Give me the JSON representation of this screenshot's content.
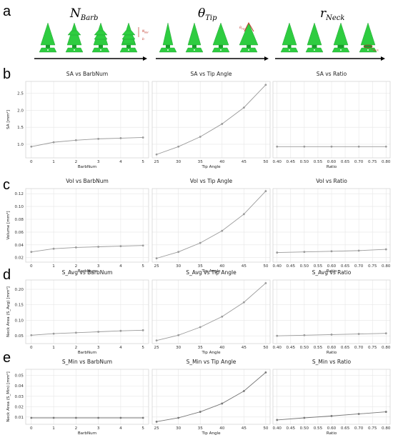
{
  "header": {
    "row_letter": "a",
    "groups": [
      {
        "label": "N",
        "sub": "Barb"
      },
      {
        "label": "θ",
        "sub": "Tip"
      },
      {
        "label": "r",
        "sub": "Neck"
      }
    ],
    "annotations": {
      "n_bar": "N",
      "n_bar_sub": "Bar",
      "b": "b",
      "theta": "θ",
      "theta_sub": "Tip",
      "r_neck": "r",
      "r_neck_sub": "Neck"
    }
  },
  "colors": {
    "spike": "#2ecc40",
    "spike_dark": "#1a9c2c",
    "line": "#9a9a9a",
    "line_dark": "#777777",
    "annot": "#c0392b"
  },
  "chart_data": [
    {
      "row": "b",
      "type": "line",
      "title": "SA vs BarbNum",
      "xlabel": "BarbNum",
      "ylabel": "SA [mm²]",
      "x": [
        0,
        1,
        2,
        3,
        4,
        5
      ],
      "values": [
        0.93,
        1.06,
        1.12,
        1.16,
        1.18,
        1.2
      ],
      "xticks": [
        "0",
        "1",
        "2",
        "3",
        "4",
        "5"
      ],
      "xlim": [
        -0.25,
        5.25
      ],
      "yticks": [
        "1.0",
        "1.5",
        "2.0",
        "2.5"
      ],
      "ytick_values": [
        1.0,
        1.5,
        2.0,
        2.5
      ],
      "ylim": [
        0.6,
        2.85
      ]
    },
    {
      "row": "b",
      "type": "line",
      "title": "SA vs Tip Angle",
      "xlabel": "Tip Angle",
      "ylabel": "",
      "x": [
        25,
        30,
        35,
        40,
        45,
        50
      ],
      "values": [
        0.7,
        0.93,
        1.22,
        1.6,
        2.08,
        2.75
      ],
      "xticks": [
        "25",
        "30",
        "35",
        "40",
        "45",
        "50"
      ],
      "xlim": [
        24,
        51
      ],
      "yticks": [],
      "ytick_values": [],
      "ylim": [
        0.6,
        2.85
      ]
    },
    {
      "row": "b",
      "type": "line",
      "title": "SA vs Ratio",
      "xlabel": "Ratio",
      "ylabel": "",
      "x": [
        0.4,
        0.5,
        0.6,
        0.7,
        0.8
      ],
      "values": [
        0.93,
        0.93,
        0.93,
        0.93,
        0.93
      ],
      "xticks": [
        "0.40",
        "0.45",
        "0.50",
        "0.55",
        "0.60",
        "0.65",
        "0.70",
        "0.75",
        "0.80"
      ],
      "xlim": [
        0.385,
        0.815
      ],
      "yticks": [],
      "ytick_values": [],
      "ylim": [
        0.6,
        2.85
      ]
    },
    {
      "row": "c",
      "type": "line",
      "title": "Vol vs BarbNum",
      "xlabel": "BarbNum",
      "ylabel": "Volume [mm³]",
      "x": [
        0,
        1,
        2,
        3,
        4,
        5
      ],
      "values": [
        0.029,
        0.034,
        0.036,
        0.037,
        0.038,
        0.039
      ],
      "xticks": [
        "0",
        "1",
        "2",
        "3",
        "4",
        "5"
      ],
      "xlim": [
        -0.25,
        5.25
      ],
      "yticks": [
        "0.02",
        "0.04",
        "0.06",
        "0.08",
        "0.10",
        "0.12"
      ],
      "ytick_values": [
        0.02,
        0.04,
        0.06,
        0.08,
        0.1,
        0.12
      ],
      "ylim": [
        0.013,
        0.128
      ]
    },
    {
      "row": "c",
      "type": "line",
      "title": "Vol vs Tip Angle",
      "xlabel": "Tip Angle",
      "ylabel": "",
      "x": [
        25,
        30,
        35,
        40,
        45,
        50
      ],
      "values": [
        0.019,
        0.029,
        0.043,
        0.062,
        0.088,
        0.124
      ],
      "xticks": [
        "25",
        "30",
        "35",
        "40",
        "45",
        "50"
      ],
      "xlim": [
        24,
        51
      ],
      "yticks": [],
      "ytick_values": [],
      "ylim": [
        0.013,
        0.128
      ]
    },
    {
      "row": "c",
      "type": "line",
      "title": "Vol vs Ratio",
      "xlabel": "Ratio",
      "ylabel": "",
      "x": [
        0.4,
        0.5,
        0.6,
        0.7,
        0.8
      ],
      "values": [
        0.028,
        0.029,
        0.03,
        0.031,
        0.033
      ],
      "xticks": [
        "0.40",
        "0.45",
        "0.50",
        "0.55",
        "0.60",
        "0.65",
        "0.70",
        "0.75",
        "0.80"
      ],
      "xlim": [
        0.385,
        0.815
      ],
      "yticks": [],
      "ytick_values": [],
      "ylim": [
        0.013,
        0.128
      ]
    },
    {
      "row": "d",
      "type": "line",
      "title": "S_Avg vs BarbNum",
      "xlabel": "BarbNum",
      "ylabel": "Neck Area (S_Avg) [mm²]",
      "x": [
        0,
        1,
        2,
        3,
        4,
        5
      ],
      "values": [
        0.052,
        0.057,
        0.06,
        0.063,
        0.066,
        0.068
      ],
      "xticks": [
        "0",
        "1",
        "2",
        "3",
        "4",
        "5"
      ],
      "xlim": [
        -0.25,
        5.25
      ],
      "yticks": [
        "0.05",
        "0.10",
        "0.15",
        "0.20"
      ],
      "ytick_values": [
        0.05,
        0.1,
        0.15,
        0.2
      ],
      "ylim": [
        0.025,
        0.23
      ]
    },
    {
      "row": "d",
      "type": "line",
      "title": "S_Avg vs Tip Angle",
      "xlabel": "Tip Angle",
      "ylabel": "",
      "x": [
        25,
        30,
        35,
        40,
        45,
        50
      ],
      "values": [
        0.035,
        0.052,
        0.078,
        0.112,
        0.158,
        0.22
      ],
      "xticks": [
        "25",
        "30",
        "35",
        "40",
        "45",
        "50"
      ],
      "xlim": [
        24,
        51
      ],
      "yticks": [],
      "ytick_values": [],
      "ylim": [
        0.025,
        0.23
      ]
    },
    {
      "row": "d",
      "type": "line",
      "title": "S_Avg vs Ratio",
      "xlabel": "Ratio",
      "ylabel": "",
      "x": [
        0.4,
        0.5,
        0.6,
        0.7,
        0.8
      ],
      "values": [
        0.05,
        0.052,
        0.054,
        0.056,
        0.058
      ],
      "xticks": [
        "0.40",
        "0.45",
        "0.50",
        "0.55",
        "0.60",
        "0.65",
        "0.70",
        "0.75",
        "0.80"
      ],
      "xlim": [
        0.385,
        0.815
      ],
      "yticks": [],
      "ytick_values": [],
      "ylim": [
        0.025,
        0.23
      ]
    },
    {
      "row": "e",
      "type": "line",
      "title": "S_Min vs BarbNum",
      "xlabel": "BarbNum",
      "ylabel": "Neck Area (S_Min) [mm²]",
      "x": [
        0,
        1,
        2,
        3,
        4,
        5
      ],
      "values": [
        0.0092,
        0.0092,
        0.0092,
        0.0092,
        0.0092,
        0.0092
      ],
      "xticks": [
        "0",
        "1",
        "2",
        "3",
        "4",
        "5"
      ],
      "xlim": [
        -0.25,
        5.25
      ],
      "yticks": [
        "0.01",
        "0.02",
        "0.03",
        "0.04",
        "0.05"
      ],
      "ytick_values": [
        0.01,
        0.02,
        0.03,
        0.04,
        0.05
      ],
      "ylim": [
        0.003,
        0.056
      ]
    },
    {
      "row": "e",
      "type": "line",
      "title": "S_Min vs Tip Angle",
      "xlabel": "Tip Angle",
      "ylabel": "",
      "x": [
        25,
        30,
        35,
        40,
        45,
        50
      ],
      "values": [
        0.0055,
        0.0092,
        0.015,
        0.023,
        0.035,
        0.053
      ],
      "xticks": [
        "25",
        "30",
        "35",
        "40",
        "45",
        "50"
      ],
      "xlim": [
        24,
        51
      ],
      "yticks": [],
      "ytick_values": [],
      "ylim": [
        0.003,
        0.056
      ]
    },
    {
      "row": "e",
      "type": "line",
      "title": "S_Min vs Ratio",
      "xlabel": "Ratio",
      "ylabel": "",
      "x": [
        0.4,
        0.5,
        0.6,
        0.7,
        0.8
      ],
      "values": [
        0.0072,
        0.0092,
        0.011,
        0.013,
        0.015
      ],
      "xticks": [
        "0.40",
        "0.45",
        "0.50",
        "0.55",
        "0.60",
        "0.65",
        "0.70",
        "0.75",
        "0.80"
      ],
      "xlim": [
        0.385,
        0.815
      ],
      "yticks": [],
      "ytick_values": [],
      "ylim": [
        0.003,
        0.056
      ]
    }
  ]
}
